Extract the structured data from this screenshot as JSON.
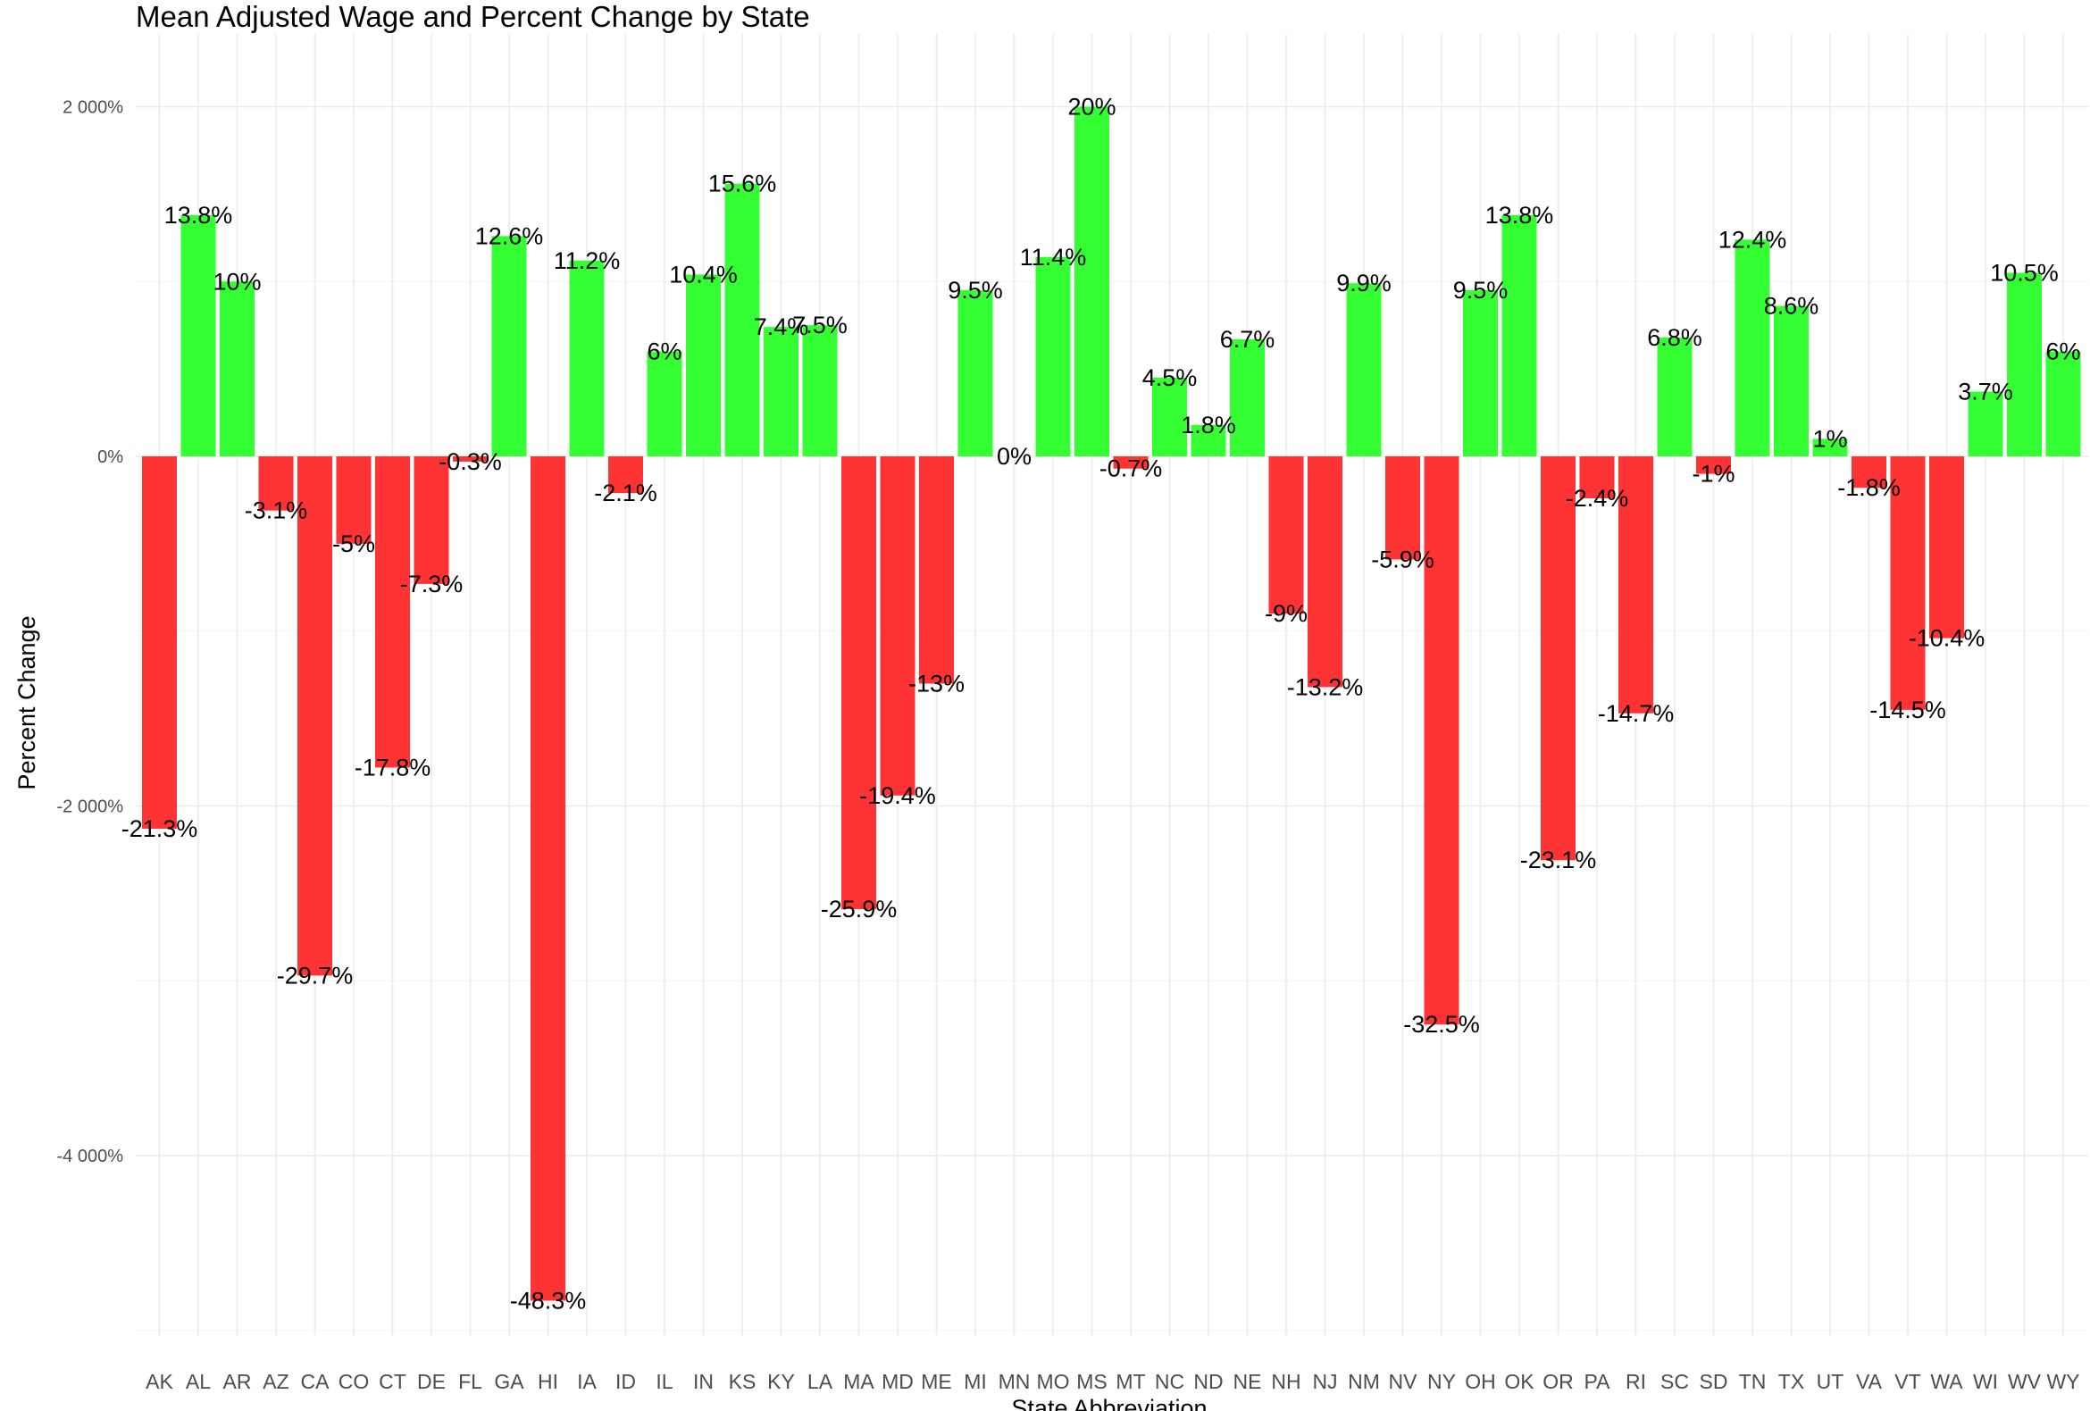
{
  "chart_data": {
    "type": "bar",
    "title": "Mean Adjusted Wage and Percent Change by State",
    "xlabel": "State Abbreviation",
    "ylabel": "Percent Change",
    "categories": [
      "AK",
      "AL",
      "AR",
      "AZ",
      "CA",
      "CO",
      "CT",
      "DE",
      "FL",
      "GA",
      "HI",
      "IA",
      "ID",
      "IL",
      "IN",
      "KS",
      "KY",
      "LA",
      "MA",
      "MD",
      "ME",
      "MI",
      "MN",
      "MO",
      "MS",
      "MT",
      "NC",
      "ND",
      "NE",
      "NH",
      "NJ",
      "NM",
      "NV",
      "NY",
      "OH",
      "OK",
      "OR",
      "PA",
      "RI",
      "SC",
      "SD",
      "TN",
      "TX",
      "UT",
      "VA",
      "VT",
      "WA",
      "WI",
      "WV",
      "WY"
    ],
    "values": [
      -21.3,
      13.8,
      10,
      -3.1,
      -29.7,
      -5,
      -17.8,
      -7.3,
      -0.3,
      12.6,
      -48.3,
      11.2,
      -2.1,
      6,
      10.4,
      15.6,
      7.4,
      7.5,
      -25.9,
      -19.4,
      -13,
      9.5,
      0,
      11.4,
      20,
      -0.7,
      4.5,
      1.8,
      6.7,
      -9,
      -13.2,
      9.9,
      -5.9,
      -32.5,
      9.5,
      13.8,
      -23.1,
      -2.4,
      -14.7,
      6.8,
      -1,
      12.4,
      8.6,
      1,
      -1.8,
      -14.5,
      -10.4,
      3.7,
      10.5,
      6
    ],
    "labels": [
      "-21.3%",
      "13.8%",
      "10%",
      "-3.1%",
      "-29.7%",
      "-5%",
      "-17.8%",
      "-7.3%",
      "-0.3%",
      "12.6%",
      "-48.3%",
      "11.2%",
      "-2.1%",
      "6%",
      "10.4%",
      "15.6%",
      "7.4%",
      "7.5%",
      "-25.9%",
      "-19.4%",
      "-13%",
      "9.5%",
      "0%",
      "11.4%",
      "20%",
      "-0.7%",
      "4.5%",
      "1.8%",
      "6.7%",
      "-9%",
      "-13.2%",
      "9.9%",
      "-5.9%",
      "-32.5%",
      "9.5%",
      "13.8%",
      "-23.1%",
      "-2.4%",
      "-14.7%",
      "6.8%",
      "-1%",
      "12.4%",
      "8.6%",
      "1%",
      "-1.8%",
      "-14.5%",
      "-10.4%",
      "3.7%",
      "10.5%",
      "6%"
    ],
    "y_ticks": [
      2000,
      0,
      -2000,
      -4000
    ],
    "y_tick_labels": [
      "2 000%",
      "0%",
      "-2 000%",
      "-4 000%"
    ],
    "ylim": [
      -5100,
      2350
    ],
    "colors": {
      "positive": "#33ff33",
      "negative": "#ff3333"
    },
    "grid": true,
    "legend": "none"
  }
}
